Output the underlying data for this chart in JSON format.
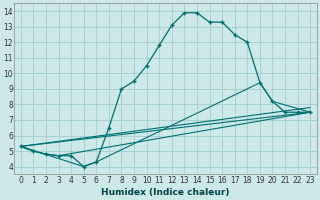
{
  "title": "",
  "xlabel": "Humidex (Indice chaleur)",
  "xlim": [
    -0.5,
    23.5
  ],
  "ylim": [
    3.5,
    14.5
  ],
  "xticks": [
    0,
    1,
    2,
    3,
    4,
    5,
    6,
    7,
    8,
    9,
    10,
    11,
    12,
    13,
    14,
    15,
    16,
    17,
    18,
    19,
    20,
    21,
    22,
    23
  ],
  "yticks": [
    4,
    5,
    6,
    7,
    8,
    9,
    10,
    11,
    12,
    13,
    14
  ],
  "bg_color": "#cce8e8",
  "grid_color": "#a0c8c8",
  "line_color": "#007070",
  "main_line": {
    "x": [
      0,
      1,
      2,
      3,
      4,
      5,
      6,
      7,
      8,
      9,
      10,
      11,
      12,
      13,
      14,
      15,
      16,
      17,
      18,
      19,
      20,
      21,
      22,
      23
    ],
    "y": [
      5.3,
      5.0,
      4.8,
      4.7,
      4.7,
      4.0,
      4.3,
      6.5,
      9.0,
      9.5,
      10.5,
      11.8,
      13.1,
      13.9,
      13.9,
      13.3,
      13.3,
      12.5,
      12.0,
      9.4,
      8.2,
      7.5,
      7.5,
      7.5
    ]
  },
  "extra_lines": [
    {
      "x": [
        0,
        23
      ],
      "y": [
        5.3,
        7.5
      ]
    },
    {
      "x": [
        0,
        5,
        6,
        19,
        20,
        23
      ],
      "y": [
        5.3,
        4.0,
        4.3,
        9.4,
        8.2,
        7.5
      ]
    },
    {
      "x": [
        0,
        1,
        2,
        3,
        23
      ],
      "y": [
        5.3,
        5.0,
        4.8,
        4.7,
        7.5
      ]
    },
    {
      "x": [
        0,
        23
      ],
      "y": [
        5.3,
        7.8
      ]
    }
  ]
}
